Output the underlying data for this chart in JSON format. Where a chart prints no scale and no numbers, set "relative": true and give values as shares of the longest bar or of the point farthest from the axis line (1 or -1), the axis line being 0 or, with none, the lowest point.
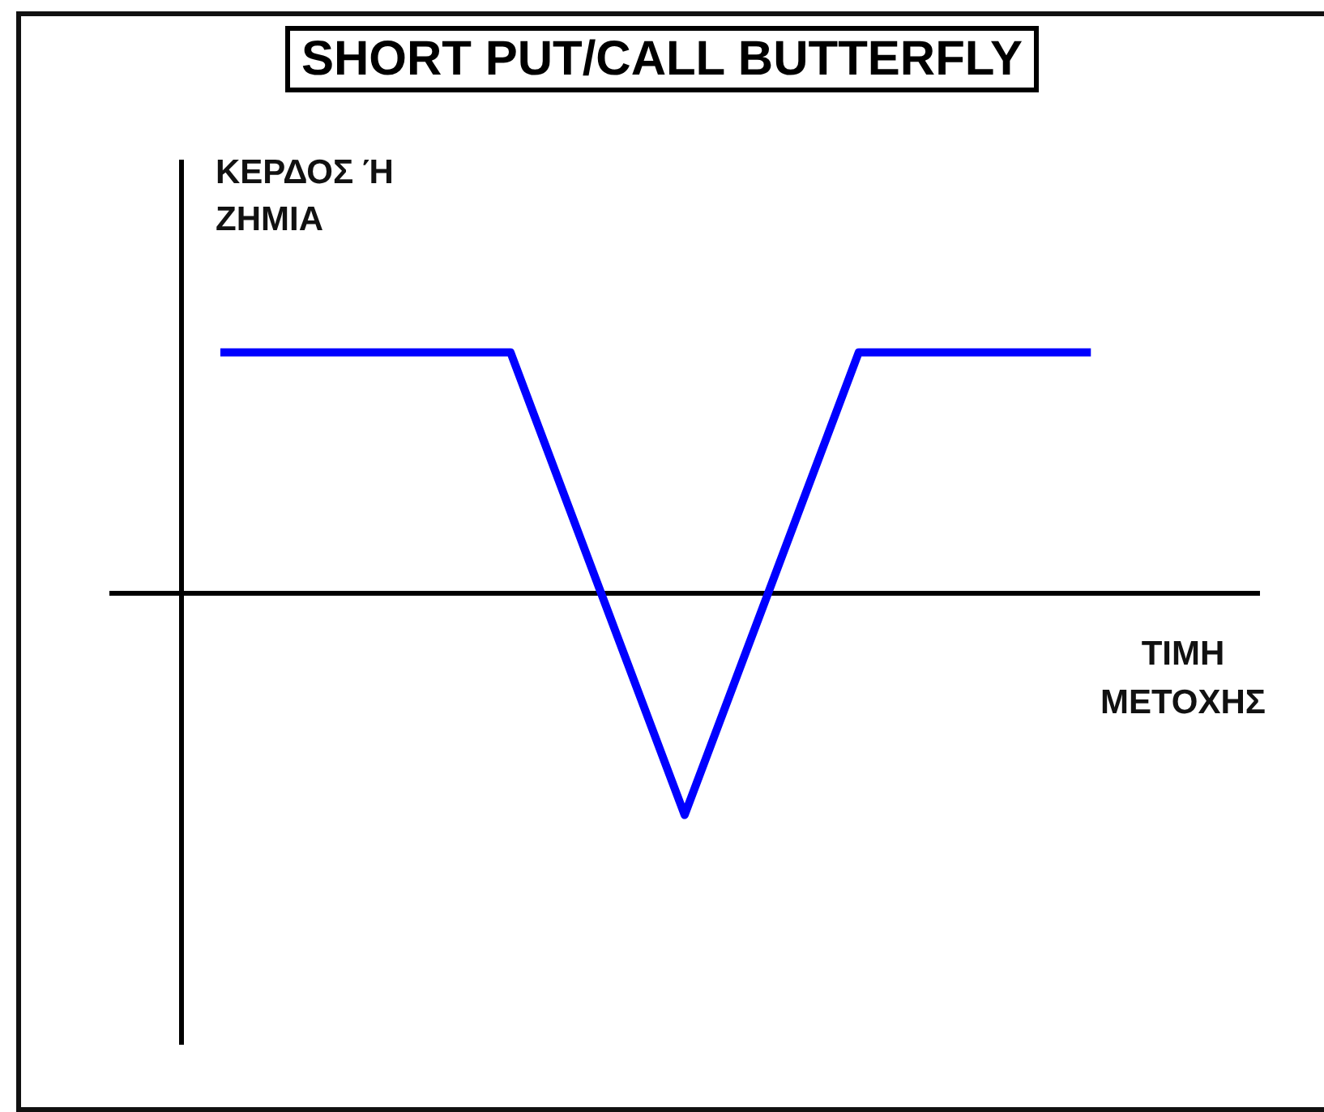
{
  "chart_data": {
    "type": "line",
    "title": "SHORT PUT/CALL BUTTERFLY",
    "xlabel": "ΤΙΜΗ ΜΕΤΟΧΗΣ",
    "ylabel": "ΚΕΡΔΟΣ Ή ΖΗΜΙΑ",
    "relative": true,
    "categories": [
      null,
      null,
      null,
      null,
      null,
      null,
      null,
      null,
      null,
      null,
      null,
      null,
      null,
      null,
      null,
      null
    ],
    "series": [
      {
        "color": "#0000ff",
        "values": [
          1,
          1,
          1,
          1,
          1,
          1,
          0.36,
          -0.28,
          -0.92,
          -0.28,
          0.36,
          1,
          1,
          1,
          1,
          1
        ]
      }
    ]
  }
}
